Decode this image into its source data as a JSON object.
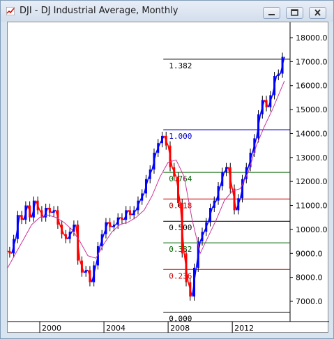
{
  "window": {
    "title": "DJI - DJ Industrial Average, Monthly",
    "icon": "app-icon",
    "buttons": {
      "minimize": "minimize-icon",
      "maximize": "maximize-icon",
      "close": "close-icon"
    }
  },
  "colors": {
    "up_candle": "#0000ff",
    "down_candle": "#ff0000",
    "moving_average": "#cc3399",
    "fib_black": "#000000",
    "fib_blue": "#0000cc",
    "fib_green": "#006600",
    "fib_red": "#cc0000"
  },
  "chart_data": {
    "type": "line",
    "symbol": "DJI",
    "title": "DJI - DJ Industrial Average, Monthly",
    "x_ticks": [
      "2000",
      "2004",
      "2008",
      "2012"
    ],
    "y_ticks": [
      "7000.0",
      "8000.0",
      "9000.0",
      "10000.0",
      "11000.0",
      "12000.0",
      "13000.0",
      "14000.0",
      "15000.0",
      "16000.0",
      "17000.0",
      "18000.0"
    ],
    "xlim": [
      1998.0,
      2015.6
    ],
    "ylim": [
      6500,
      18500
    ],
    "grid": false,
    "fib_levels": [
      {
        "label": "1.382",
        "value": 17100,
        "color": "fib_black"
      },
      {
        "label": "1.000",
        "value": 14160,
        "color": "fib_blue"
      },
      {
        "label": "0.764",
        "value": 12380,
        "color": "fib_green"
      },
      {
        "label": "0.618",
        "value": 11270,
        "color": "fib_red"
      },
      {
        "label": "0.500",
        "value": 10340,
        "color": "fib_black"
      },
      {
        "label": "0.382",
        "value": 9440,
        "color": "fib_green"
      },
      {
        "label": "0.236",
        "value": 8330,
        "color": "fib_red"
      },
      {
        "label": "0.000",
        "value": 6550,
        "color": "fib_black"
      }
    ],
    "series": [
      {
        "kind": "price",
        "x": [
          1998.0,
          1998.25,
          1998.5,
          1998.75,
          1999.0,
          1999.25,
          1999.5,
          1999.75,
          2000.0,
          2000.25,
          2000.5,
          2000.75,
          2001.0,
          2001.25,
          2001.5,
          2001.75,
          2002.0,
          2002.25,
          2002.5,
          2002.75,
          2003.0,
          2003.25,
          2003.5,
          2003.75,
          2004.0,
          2004.25,
          2004.5,
          2004.75,
          2005.0,
          2005.25,
          2005.5,
          2005.75,
          2006.0,
          2006.25,
          2006.5,
          2006.75,
          2007.0,
          2007.25,
          2007.5,
          2007.75,
          2008.0,
          2008.25,
          2008.5,
          2008.75,
          2009.0,
          2009.25,
          2009.5,
          2009.75,
          2010.0,
          2010.25,
          2010.5,
          2010.75,
          2011.0,
          2011.25,
          2011.5,
          2011.75,
          2012.0,
          2012.25,
          2012.5,
          2012.75,
          2013.0,
          2013.25,
          2013.5,
          2013.75,
          2014.0,
          2014.25,
          2014.5,
          2014.75,
          2015.0,
          2015.25
        ],
        "y": [
          9100,
          9000,
          9600,
          10600,
          10400,
          11000,
          10500,
          11200,
          10800,
          10500,
          10900,
          10700,
          10800,
          10200,
          9800,
          9600,
          9900,
          10200,
          8700,
          8200,
          8300,
          7800,
          8500,
          9300,
          9800,
          10300,
          10100,
          10200,
          10500,
          10400,
          10800,
          10600,
          10800,
          11200,
          11500,
          12100,
          12500,
          13200,
          13600,
          13900,
          13500,
          12600,
          12200,
          11100,
          9000,
          7800,
          7200,
          8400,
          9500,
          9900,
          10300,
          10900,
          11200,
          11800,
          12400,
          12600,
          11700,
          10800,
          11300,
          12100,
          12600,
          13200,
          13800,
          14800,
          15400,
          15100,
          15600,
          16400,
          16500,
          17200
        ]
      },
      {
        "kind": "moving_average",
        "x": [
          1998.0,
          1998.5,
          1999.0,
          1999.5,
          2000.0,
          2000.5,
          2001.0,
          2001.5,
          2002.0,
          2002.5,
          2003.0,
          2003.5,
          2004.0,
          2004.5,
          2005.0,
          2005.5,
          2006.0,
          2006.5,
          2007.0,
          2007.5,
          2008.0,
          2008.5,
          2009.0,
          2009.5,
          2010.0,
          2010.5,
          2011.0,
          2011.5,
          2012.0,
          2012.5,
          2013.0,
          2013.5,
          2014.0,
          2014.5,
          2015.0,
          2015.25
        ],
        "y": [
          8400,
          9000,
          9600,
          10200,
          10500,
          10600,
          10500,
          10300,
          10000,
          9500,
          8900,
          8800,
          9400,
          9900,
          10200,
          10300,
          10500,
          10800,
          11400,
          12200,
          12800,
          12900,
          12200,
          10400,
          9000,
          9700,
          10400,
          11200,
          11600,
          11700,
          12400,
          13500,
          14300,
          15000,
          15800,
          16200
        ]
      }
    ]
  }
}
